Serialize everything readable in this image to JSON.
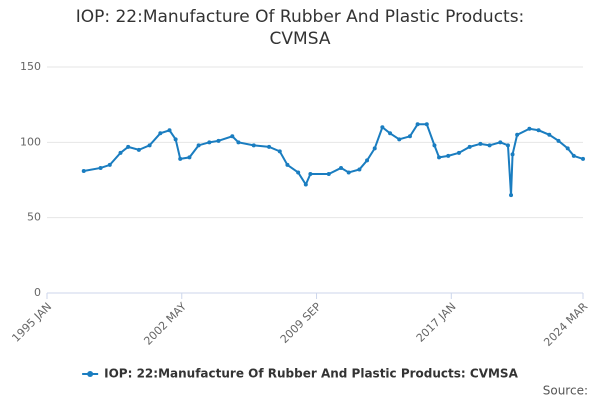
{
  "chart_data": {
    "type": "line",
    "title": "IOP: 22:Manufacture Of Rubber And Plastic Products: CVMSA",
    "source": "Source:",
    "x": [
      "1997 JAN",
      "1997 DEC",
      "1998 JUN",
      "1999 JAN",
      "1999 JUN",
      "2000 JAN",
      "2000 AUG",
      "2001 MAR",
      "2001 SEP",
      "2002 JAN",
      "2002 APR",
      "2002 OCT",
      "2003 APR",
      "2003 NOV",
      "2004 MAY",
      "2005 FEB",
      "2005 JUN",
      "2006 APR",
      "2007 FEB",
      "2007 SEP",
      "2008 FEB",
      "2008 SEP",
      "2009 FEB",
      "2009 MAY",
      "2010 MAY",
      "2011 JAN",
      "2011 JUN",
      "2012 JAN",
      "2012 JUN",
      "2012 NOV",
      "2013 APR",
      "2013 SEP",
      "2014 MAR",
      "2014 OCT",
      "2015 MAR",
      "2015 SEP",
      "2016 FEB",
      "2016 MAY",
      "2016 NOV",
      "2017 JUN",
      "2018 JAN",
      "2018 AUG",
      "2019 FEB",
      "2019 SEP",
      "2020 FEB",
      "2020 APR",
      "2020 MAY",
      "2020 AUG",
      "2021 APR",
      "2021 OCT",
      "2022 MAY",
      "2022 NOV",
      "2023 MAY",
      "2023 SEP",
      "2024 MAR"
    ],
    "series": [
      {
        "name": "IOP: 22:Manufacture Of Rubber And Plastic Products: CVMSA",
        "color": "#1a7dc0",
        "values": [
          81,
          83,
          85,
          93,
          97,
          95,
          98,
          106,
          108,
          102,
          89,
          90,
          98,
          100,
          101,
          104,
          100,
          98,
          97,
          94,
          85,
          80,
          72,
          79,
          79,
          83,
          80,
          82,
          88,
          96,
          110,
          106,
          102,
          104,
          112,
          112,
          98,
          90,
          91,
          93,
          97,
          99,
          98,
          100,
          98,
          65,
          92,
          105,
          109,
          108,
          105,
          101,
          96,
          91,
          89
        ]
      }
    ],
    "xlim": [
      "1995 JAN",
      "2024 MAR"
    ],
    "xticks": [
      "1995 JAN",
      "2002 MAY",
      "2009 SEP",
      "2017 JAN",
      "2024 MAR"
    ],
    "ylim": [
      0,
      150
    ],
    "yticks": [
      0,
      50,
      100,
      150
    ],
    "grid": true,
    "legend": "bottom"
  }
}
